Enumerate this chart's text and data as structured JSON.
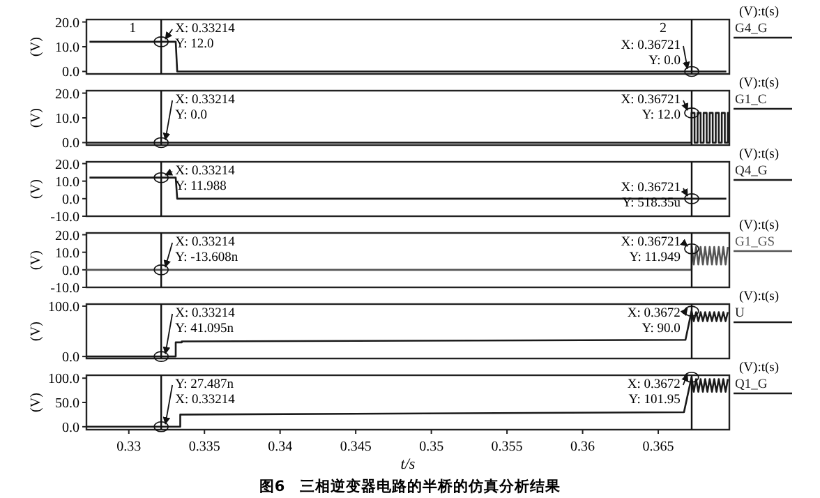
{
  "chart_data": [
    {
      "type": "line",
      "ylabel": "(V)",
      "legend_title": "(V):t(s)",
      "legend": "right",
      "tick_labels": "y",
      "xlim": [
        0.3272,
        0.3697
      ],
      "ylim": [
        -1,
        21
      ],
      "yticks": [
        {
          "value": 0,
          "label": "0.0"
        },
        {
          "value": 10,
          "label": "10.0"
        },
        {
          "value": 20,
          "label": "20.0"
        }
      ],
      "series": [
        {
          "name": "G4_G",
          "color": "#1a1a1a",
          "x": [
            0.3274,
            0.3331,
            0.3332,
            0.3695
          ],
          "values": [
            12,
            12,
            0,
            0
          ]
        }
      ],
      "ref_lines": [
        {
          "axis": "x",
          "value": 0.33214
        },
        {
          "axis": "x",
          "value": 0.36721
        }
      ],
      "annotations": [
        {
          "text": "1",
          "x": 0.33214
        },
        {
          "text": "2",
          "x": 0.36721
        },
        {
          "text": "X: 0.33214",
          "x": 0.33214,
          "y": 12
        },
        {
          "text": "Y: 12.0",
          "x": 0.33214,
          "y": 12
        },
        {
          "text": "X: 0.36721",
          "x": 0.36721,
          "y": 0
        },
        {
          "text": "Y: 0.0",
          "x": 0.36721,
          "y": 0
        }
      ]
    },
    {
      "type": "line",
      "ylabel": "(V)",
      "legend_title": "(V):t(s)",
      "legend": "right",
      "tick_labels": "y",
      "xlim": [
        0.3272,
        0.3697
      ],
      "ylim": [
        -1,
        21
      ],
      "yticks": [
        {
          "value": 0,
          "label": "0.0"
        },
        {
          "value": 10,
          "label": "10.0"
        },
        {
          "value": 20,
          "label": "20.0"
        }
      ],
      "series": [
        {
          "name": "G1_C",
          "color": "#1a1a1a",
          "x": [
            0.3272,
            0.3672,
            0.3672,
            0.3674,
            0.3674,
            0.3676,
            0.3676,
            0.3678,
            0.3678,
            0.368,
            0.368,
            0.3682,
            0.3682,
            0.3684,
            0.3684,
            0.3686,
            0.3686,
            0.3688,
            0.3688,
            0.369,
            0.369,
            0.3692,
            0.3692,
            0.3694,
            0.3694,
            0.3696,
            0.3696,
            0.3697
          ],
          "values": [
            0,
            0,
            12,
            12,
            0,
            0,
            12,
            12,
            0,
            0,
            12,
            12,
            0,
            0,
            12,
            12,
            0,
            0,
            12,
            12,
            0,
            0,
            12,
            12,
            0,
            0,
            12,
            12
          ]
        }
      ],
      "ref_lines": [
        {
          "axis": "x",
          "value": 0.33214
        },
        {
          "axis": "x",
          "value": 0.36721
        }
      ],
      "annotations": [
        {
          "text": "X: 0.33214",
          "x": 0.33214,
          "y": 0
        },
        {
          "text": "Y: 0.0",
          "x": 0.33214,
          "y": 0
        },
        {
          "text": "X: 0.36721",
          "x": 0.36721,
          "y": 12
        },
        {
          "text": "Y: 12.0",
          "x": 0.36721,
          "y": 12
        }
      ]
    },
    {
      "type": "line",
      "ylabel": "(V)",
      "legend_title": "(V):t(s)",
      "legend": "right",
      "tick_labels": "y",
      "xlim": [
        0.3272,
        0.3697
      ],
      "ylim": [
        -10,
        21
      ],
      "yticks": [
        {
          "value": -10,
          "label": "-10.0"
        },
        {
          "value": 0,
          "label": "0.0"
        },
        {
          "value": 10,
          "label": "10.0"
        },
        {
          "value": 20,
          "label": "20.0"
        }
      ],
      "series": [
        {
          "name": "Q4_G",
          "color": "#1a1a1a",
          "x": [
            0.3274,
            0.3331,
            0.3332,
            0.3695
          ],
          "values": [
            12,
            12,
            0,
            0
          ]
        }
      ],
      "ref_lines": [
        {
          "axis": "x",
          "value": 0.33214
        },
        {
          "axis": "x",
          "value": 0.36721
        }
      ],
      "annotations": [
        {
          "text": "X: 0.33214",
          "x": 0.33214,
          "y": 11.988
        },
        {
          "text": "Y: 11.988",
          "x": 0.33214,
          "y": 11.988
        },
        {
          "text": "X: 0.36721",
          "x": 0.36721,
          "y": 0.00051835
        },
        {
          "text": "Y: 518.35u",
          "x": 0.36721,
          "y": 0.00051835
        }
      ]
    },
    {
      "type": "line",
      "ylabel": "(V)",
      "legend_title": "(V):t(s)",
      "legend": "right",
      "tick_labels": "y",
      "xlim": [
        0.3272,
        0.3697
      ],
      "ylim": [
        -10,
        21
      ],
      "yticks": [
        {
          "value": -10,
          "label": "-10.0"
        },
        {
          "value": 0,
          "label": "0.0"
        },
        {
          "value": 10,
          "label": "10.0"
        },
        {
          "value": 20,
          "label": "20.0"
        }
      ],
      "series": [
        {
          "name": "G1_GS",
          "color": "#555555",
          "x": [
            0.3272,
            0.3672,
            0.3672,
            0.36735,
            0.3675,
            0.36765,
            0.3678,
            0.36795,
            0.3681,
            0.36825,
            0.3684,
            0.36855,
            0.3687,
            0.36885,
            0.369,
            0.36915,
            0.3693,
            0.36945,
            0.3696
          ],
          "values": [
            0,
            0,
            14,
            3,
            13,
            3,
            13,
            3,
            13,
            3,
            13,
            3,
            13,
            3,
            13,
            3,
            13,
            3,
            13
          ]
        }
      ],
      "ref_lines": [
        {
          "axis": "x",
          "value": 0.33214
        },
        {
          "axis": "x",
          "value": 0.36721
        }
      ],
      "annotations": [
        {
          "text": "X: 0.33214",
          "x": 0.33214,
          "y": -1.3608e-08
        },
        {
          "text": "Y: -13.608n",
          "x": 0.33214,
          "y": -1.3608e-08
        },
        {
          "text": "X: 0.36721",
          "x": 0.36721,
          "y": 11.949
        },
        {
          "text": "Y: 11.949",
          "x": 0.36721,
          "y": 11.949
        }
      ]
    },
    {
      "type": "line",
      "ylabel": "(V)",
      "legend_title": "(V):t(s)",
      "legend": "right",
      "tick_labels": "y",
      "xlim": [
        0.3272,
        0.3697
      ],
      "ylim": [
        -4,
        104
      ],
      "yticks": [
        {
          "value": 0,
          "label": "0.0"
        },
        {
          "value": 100,
          "label": "100.0"
        }
      ],
      "series": [
        {
          "name": "U",
          "color": "#1a1a1a",
          "x": [
            0.3272,
            0.3331,
            0.3331,
            0.3335,
            0.3335,
            0.3668,
            0.3672,
            0.36735,
            0.3675,
            0.36765,
            0.3678,
            0.36795,
            0.3681,
            0.36825,
            0.3684,
            0.36855,
            0.3687,
            0.36885,
            0.369,
            0.36915,
            0.3693,
            0.36945,
            0.3696
          ],
          "values": [
            0,
            0,
            28,
            28,
            30,
            33,
            90,
            70,
            88,
            70,
            88,
            70,
            88,
            70,
            88,
            70,
            88,
            70,
            88,
            70,
            88,
            70,
            88
          ]
        }
      ],
      "ref_lines": [
        {
          "axis": "x",
          "value": 0.33214
        },
        {
          "axis": "x",
          "value": 0.36721
        }
      ],
      "annotations": [
        {
          "text": "X: 0.33214",
          "x": 0.33214,
          "y": 4.1095e-08
        },
        {
          "text": "Y: 41.095n",
          "x": 0.33214,
          "y": 4.1095e-08
        },
        {
          "text": "X: 0.3672",
          "x": 0.3672,
          "y": 90
        },
        {
          "text": "Y: 90.0",
          "x": 0.3672,
          "y": 90
        }
      ]
    },
    {
      "type": "line",
      "ylabel": "(V)",
      "legend_title": "(V):t(s)",
      "legend": "right",
      "xlabel": "t/s",
      "xlim": [
        0.3272,
        0.3697
      ],
      "ylim": [
        -6,
        106
      ],
      "xticks": [
        0.33,
        0.335,
        0.34,
        0.345,
        0.35,
        0.355,
        0.36,
        0.365
      ],
      "yticks": [
        {
          "value": 0,
          "label": "0.0"
        },
        {
          "value": 50,
          "label": "50.0"
        },
        {
          "value": 100,
          "label": "100.0"
        }
      ],
      "series": [
        {
          "name": "Q1_G",
          "color": "#1a1a1a",
          "x": [
            0.3272,
            0.3334,
            0.3334,
            0.3667,
            0.3672,
            0.36735,
            0.3675,
            0.36765,
            0.3678,
            0.36795,
            0.3681,
            0.36825,
            0.3684,
            0.36855,
            0.3687,
            0.36885,
            0.369,
            0.36915,
            0.3693,
            0.36945,
            0.3696
          ],
          "values": [
            0,
            0,
            25,
            30,
            101.95,
            72,
            98,
            72,
            98,
            72,
            98,
            72,
            98,
            72,
            98,
            72,
            98,
            72,
            98,
            72,
            98
          ]
        }
      ],
      "ref_lines": [
        {
          "axis": "x",
          "value": 0.33214
        },
        {
          "axis": "x",
          "value": 0.36721
        }
      ],
      "annotations": [
        {
          "text": "Y: 27.487n",
          "x": 0.33214,
          "y": 2.7487e-08
        },
        {
          "text": "X: 0.33214",
          "x": 0.33214,
          "y": 2.7487e-08
        },
        {
          "text": "X: 0.3672",
          "x": 0.3672,
          "y": 101.95
        },
        {
          "text": "Y: 101.95",
          "x": 0.3672,
          "y": 101.95
        },
        "图6　三相逆变器电路的半桥的仿真分析结果"
      ]
    }
  ]
}
